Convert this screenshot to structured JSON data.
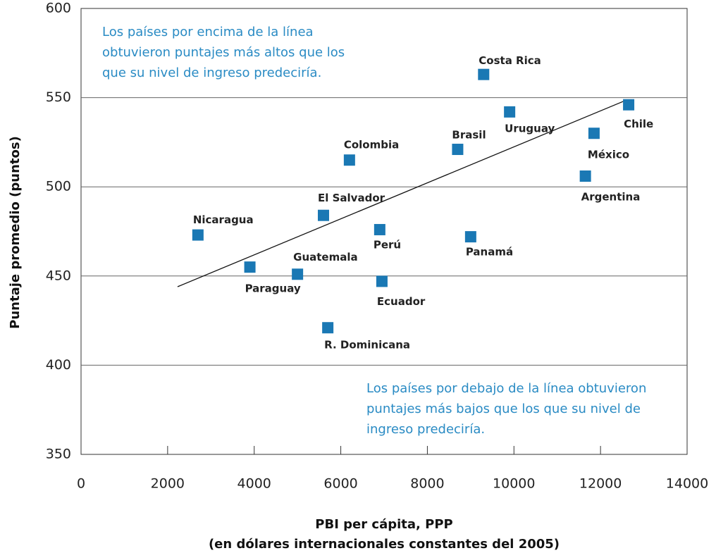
{
  "chart_data": {
    "type": "scatter",
    "xlabel": [
      "PBI per cápita, PPP",
      "(en dólares internacionales constantes del 2005)"
    ],
    "ylabel": "Puntaje promedio (puntos)",
    "annotations": [
      [
        "Los países por encima de la línea",
        "obtuvieron puntajes más altos que los",
        "que su nivel de ingreso predeciría."
      ],
      [
        "Los países por debajo de la línea obtuvieron",
        "puntajes más bajos que los que su nivel de",
        "ingreso predeciría."
      ]
    ],
    "color": "#1a78b4",
    "labels": [
      "Costa Rica",
      "Uruguay",
      "Chile",
      "México",
      "Argentina",
      "Brasil",
      "Colombia",
      "El Salvador",
      "Nicaragua",
      "Perú",
      "Panamá",
      "Paraguay",
      "Guatemala",
      "Ecuador",
      "R. Dominicana"
    ],
    "x": [
      9300,
      9900,
      12650,
      11850,
      11650,
      8700,
      6200,
      5600,
      2700,
      6900,
      9000,
      3900,
      5000,
      6950,
      5700
    ],
    "values": [
      563,
      542,
      546,
      530,
      506,
      521,
      515,
      484,
      473,
      476,
      472,
      455,
      451,
      447,
      421
    ],
    "trend_line": {
      "x": [
        2230,
        12535
      ],
      "values": [
        444,
        548
      ]
    },
    "xlim": [
      0,
      14000
    ],
    "xticks": [
      0,
      2000,
      4000,
      6000,
      8000,
      10000,
      12000,
      14000
    ],
    "ylim": [
      350,
      600
    ],
    "yticks": [
      350,
      400,
      450,
      500,
      550,
      600
    ],
    "grid": true
  }
}
